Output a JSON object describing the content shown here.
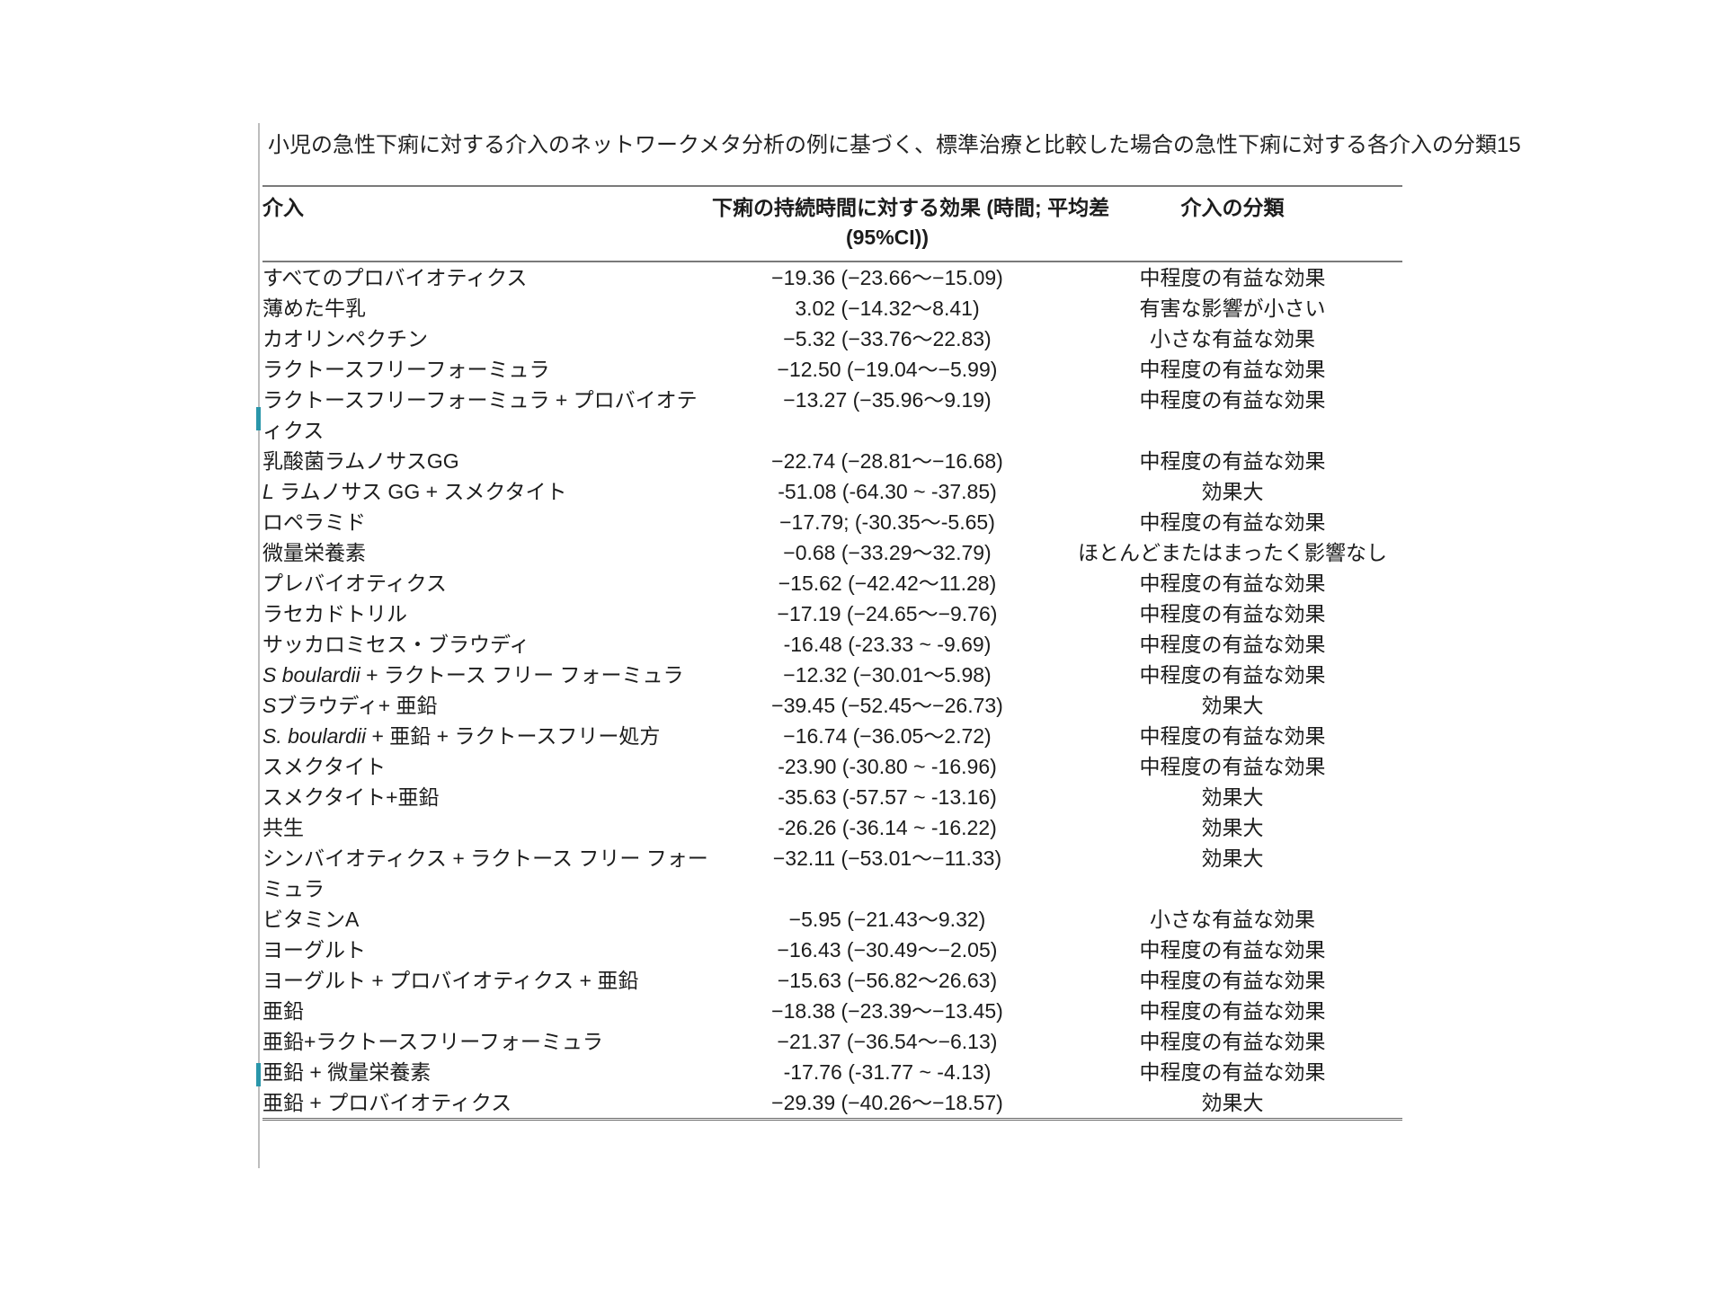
{
  "title": "小児の急性下痢に対する介入のネットワークメタ分析の例に基づく、標準治療と比較した場合の急性下痢に対する各介入の分類15",
  "colors": {
    "text": "#1c1c1c",
    "rule": "#7a7a7a",
    "left_line": "#bdbdbd",
    "tick_accent": "#2a96aa",
    "background": "#ffffff"
  },
  "table": {
    "headers": {
      "intervention": "介入",
      "effect_line1": "下痢の持続時間に対する効果 (時間; 平均差",
      "effect_line2": "(95%CI))",
      "classification": "介入の分類"
    },
    "rows": [
      {
        "it": "",
        "name": "すべてのプロバイオティクス",
        "effect": "−19.36 (−23.66〜−15.09)",
        "class": "中程度の有益な効果"
      },
      {
        "it": "",
        "name": "薄めた牛乳",
        "effect": "3.02 (−14.32〜8.41)",
        "class": "有害な影響が小さい"
      },
      {
        "it": "",
        "name": "カオリンペクチン",
        "effect": "−5.32 (−33.76〜22.83)",
        "class": "小さな有益な効果"
      },
      {
        "it": "",
        "name": "ラクトースフリーフォーミュラ",
        "effect": "−12.50 (−19.04〜−5.99)",
        "class": "中程度の有益な効果"
      },
      {
        "it": "",
        "name": "ラクトースフリーフォーミュラ + プロバイオティクス",
        "effect": "−13.27 (−35.96〜9.19)",
        "class": "中程度の有益な効果"
      },
      {
        "it": "",
        "name": "乳酸菌ラムノサスGG",
        "effect": "−22.74 (−28.81〜−16.68)",
        "class": "中程度の有益な効果"
      },
      {
        "it": "L",
        "name": " ラムノサス GG + スメクタイト",
        "effect": "-51.08 (-64.30 ~ -37.85)",
        "class": "効果大"
      },
      {
        "it": "",
        "name": "ロペラミド",
        "effect": "−17.79; (-30.35〜-5.65)",
        "class": "中程度の有益な効果"
      },
      {
        "it": "",
        "name": "微量栄養素",
        "effect": "−0.68 (−33.29〜32.79)",
        "class": "ほとんどまたはまったく影響なし"
      },
      {
        "it": "",
        "name": "プレバイオティクス",
        "effect": "−15.62 (−42.42〜11.28)",
        "class": "中程度の有益な効果"
      },
      {
        "it": "",
        "name": "ラセカドトリル",
        "effect": "−17.19 (−24.65〜−9.76)",
        "class": "中程度の有益な効果"
      },
      {
        "it": "",
        "name": "サッカロミセス・ブラウディ",
        "effect": "-16.48 (-23.33 ~ -9.69)",
        "class": "中程度の有益な効果"
      },
      {
        "it": "S boulardii",
        "name": " + ラクトース フリー フォーミュラ",
        "effect": "−12.32 (−30.01〜5.98)",
        "class": "中程度の有益な効果"
      },
      {
        "it": "S",
        "name": "ブラウディ+ 亜鉛",
        "effect": "−39.45 (−52.45〜−26.73)",
        "class": "効果大"
      },
      {
        "it": "S. boulardii",
        "name": " + 亜鉛 + ラクトースフリー処方",
        "effect": "−16.74 (−36.05〜2.72)",
        "class": "中程度の有益な効果"
      },
      {
        "it": "",
        "name": "スメクタイト",
        "effect": "-23.90 (-30.80 ~ -16.96)",
        "class": "中程度の有益な効果"
      },
      {
        "it": "",
        "name": "スメクタイト+亜鉛",
        "effect": "-35.63 (-57.57 ~ -13.16)",
        "class": "効果大"
      },
      {
        "it": "",
        "name": "共生",
        "effect": "-26.26 (-36.14 ~ -16.22)",
        "class": "効果大"
      },
      {
        "it": "",
        "name": "シンバイオティクス + ラクトース フリー フォーミュラ",
        "effect": "−32.11 (−53.01〜−11.33)",
        "class": "効果大"
      },
      {
        "it": "",
        "name": "ビタミンA",
        "effect": "−5.95 (−21.43〜9.32)",
        "class": "小さな有益な効果"
      },
      {
        "it": "",
        "name": "ヨーグルト",
        "effect": "−16.43 (−30.49〜−2.05)",
        "class": "中程度の有益な効果"
      },
      {
        "it": "",
        "name": "ヨーグルト + プロバイオティクス + 亜鉛",
        "effect": "−15.63 (−56.82〜26.63)",
        "class": "中程度の有益な効果"
      },
      {
        "it": "",
        "name": "亜鉛",
        "effect": "−18.38 (−23.39〜−13.45)",
        "class": "中程度の有益な効果"
      },
      {
        "it": "",
        "name": "亜鉛+ラクトースフリーフォーミュラ",
        "effect": "−21.37 (−36.54〜−6.13)",
        "class": "中程度の有益な効果"
      },
      {
        "it": "",
        "name": "亜鉛 + 微量栄養素",
        "effect": "-17.76 (-31.77 ~ -4.13)",
        "class": "中程度の有益な効果"
      },
      {
        "it": "",
        "name": "亜鉛 + プロバイオティクス",
        "effect": "−29.39 (−40.26〜−18.57)",
        "class": "効果大"
      }
    ]
  }
}
